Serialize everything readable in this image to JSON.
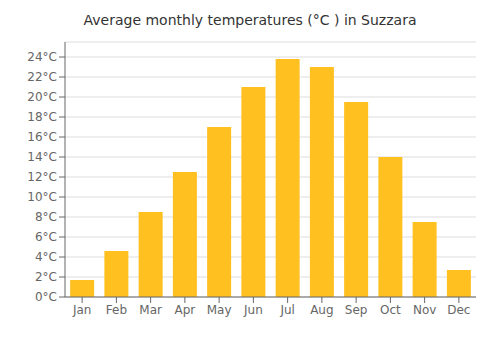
{
  "chart_data": {
    "type": "bar",
    "title": "Average monthly temperatures (°C ) in Suzzara",
    "categories": [
      "Jan",
      "Feb",
      "Mar",
      "Apr",
      "May",
      "Jun",
      "Jul",
      "Aug",
      "Sep",
      "Oct",
      "Nov",
      "Dec"
    ],
    "values": [
      1.7,
      4.6,
      8.5,
      12.5,
      17.0,
      21.0,
      23.8,
      23.0,
      19.5,
      14.0,
      7.5,
      2.7
    ],
    "color": "#FFC020",
    "ylim": [
      0,
      25.5
    ],
    "yticks": [
      {
        "value": 0,
        "label": "0°C"
      },
      {
        "value": 2,
        "label": "2°C"
      },
      {
        "value": 4,
        "label": "4°C"
      },
      {
        "value": 6,
        "label": "6°C"
      },
      {
        "value": 8,
        "label": "8°C"
      },
      {
        "value": 10,
        "label": "10°C"
      },
      {
        "value": 12,
        "label": "12°C"
      },
      {
        "value": 14,
        "label": "14°C"
      },
      {
        "value": 16,
        "label": "16°C"
      },
      {
        "value": 18,
        "label": "18°C"
      },
      {
        "value": 20,
        "label": "20°C"
      },
      {
        "value": 22,
        "label": "22°C"
      },
      {
        "value": 24,
        "label": "24°C"
      }
    ],
    "grid": true
  }
}
